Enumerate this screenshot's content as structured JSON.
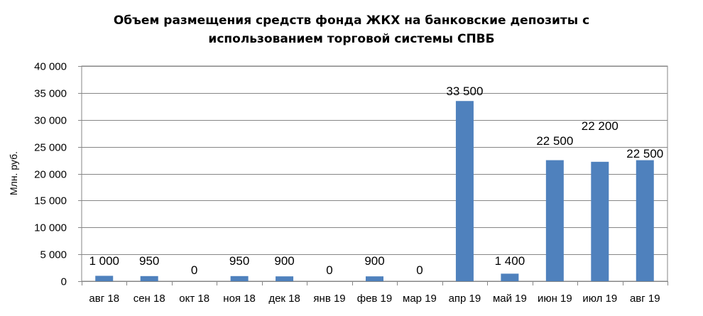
{
  "chart_data": {
    "type": "bar",
    "title_lines": [
      "Объем размещения средств фонда ЖКХ на банковские депозиты с",
      "использованием торговой  системы СПВБ"
    ],
    "xlabel": "",
    "ylabel": "Млн. руб.",
    "ylim": [
      0,
      40000
    ],
    "y_ticks": [
      0,
      5000,
      10000,
      15000,
      20000,
      25000,
      30000,
      35000,
      40000
    ],
    "y_tick_labels": [
      "0",
      "5 000",
      "10 000",
      "15 000",
      "20 000",
      "25 000",
      "30 000",
      "35 000",
      "40 000"
    ],
    "grid": true,
    "categories": [
      "авг 18",
      "сен 18",
      "окт 18",
      "ноя 18",
      "дек 18",
      "янв 19",
      "фев 19",
      "мар 19",
      "апр 19",
      "май 19",
      "июн 19",
      "июл 19",
      "авг 19"
    ],
    "values": [
      1000,
      950,
      0,
      950,
      900,
      0,
      900,
      0,
      33500,
      1400,
      22500,
      22200,
      22500
    ],
    "data_labels": [
      "1 000",
      "950",
      "0",
      "950",
      "900",
      "0",
      "900",
      "0",
      "33 500",
      "1 400",
      "22 500",
      "22 200",
      "22 500"
    ],
    "bar_color": "#4F81BD",
    "grid_color": "#868686"
  }
}
